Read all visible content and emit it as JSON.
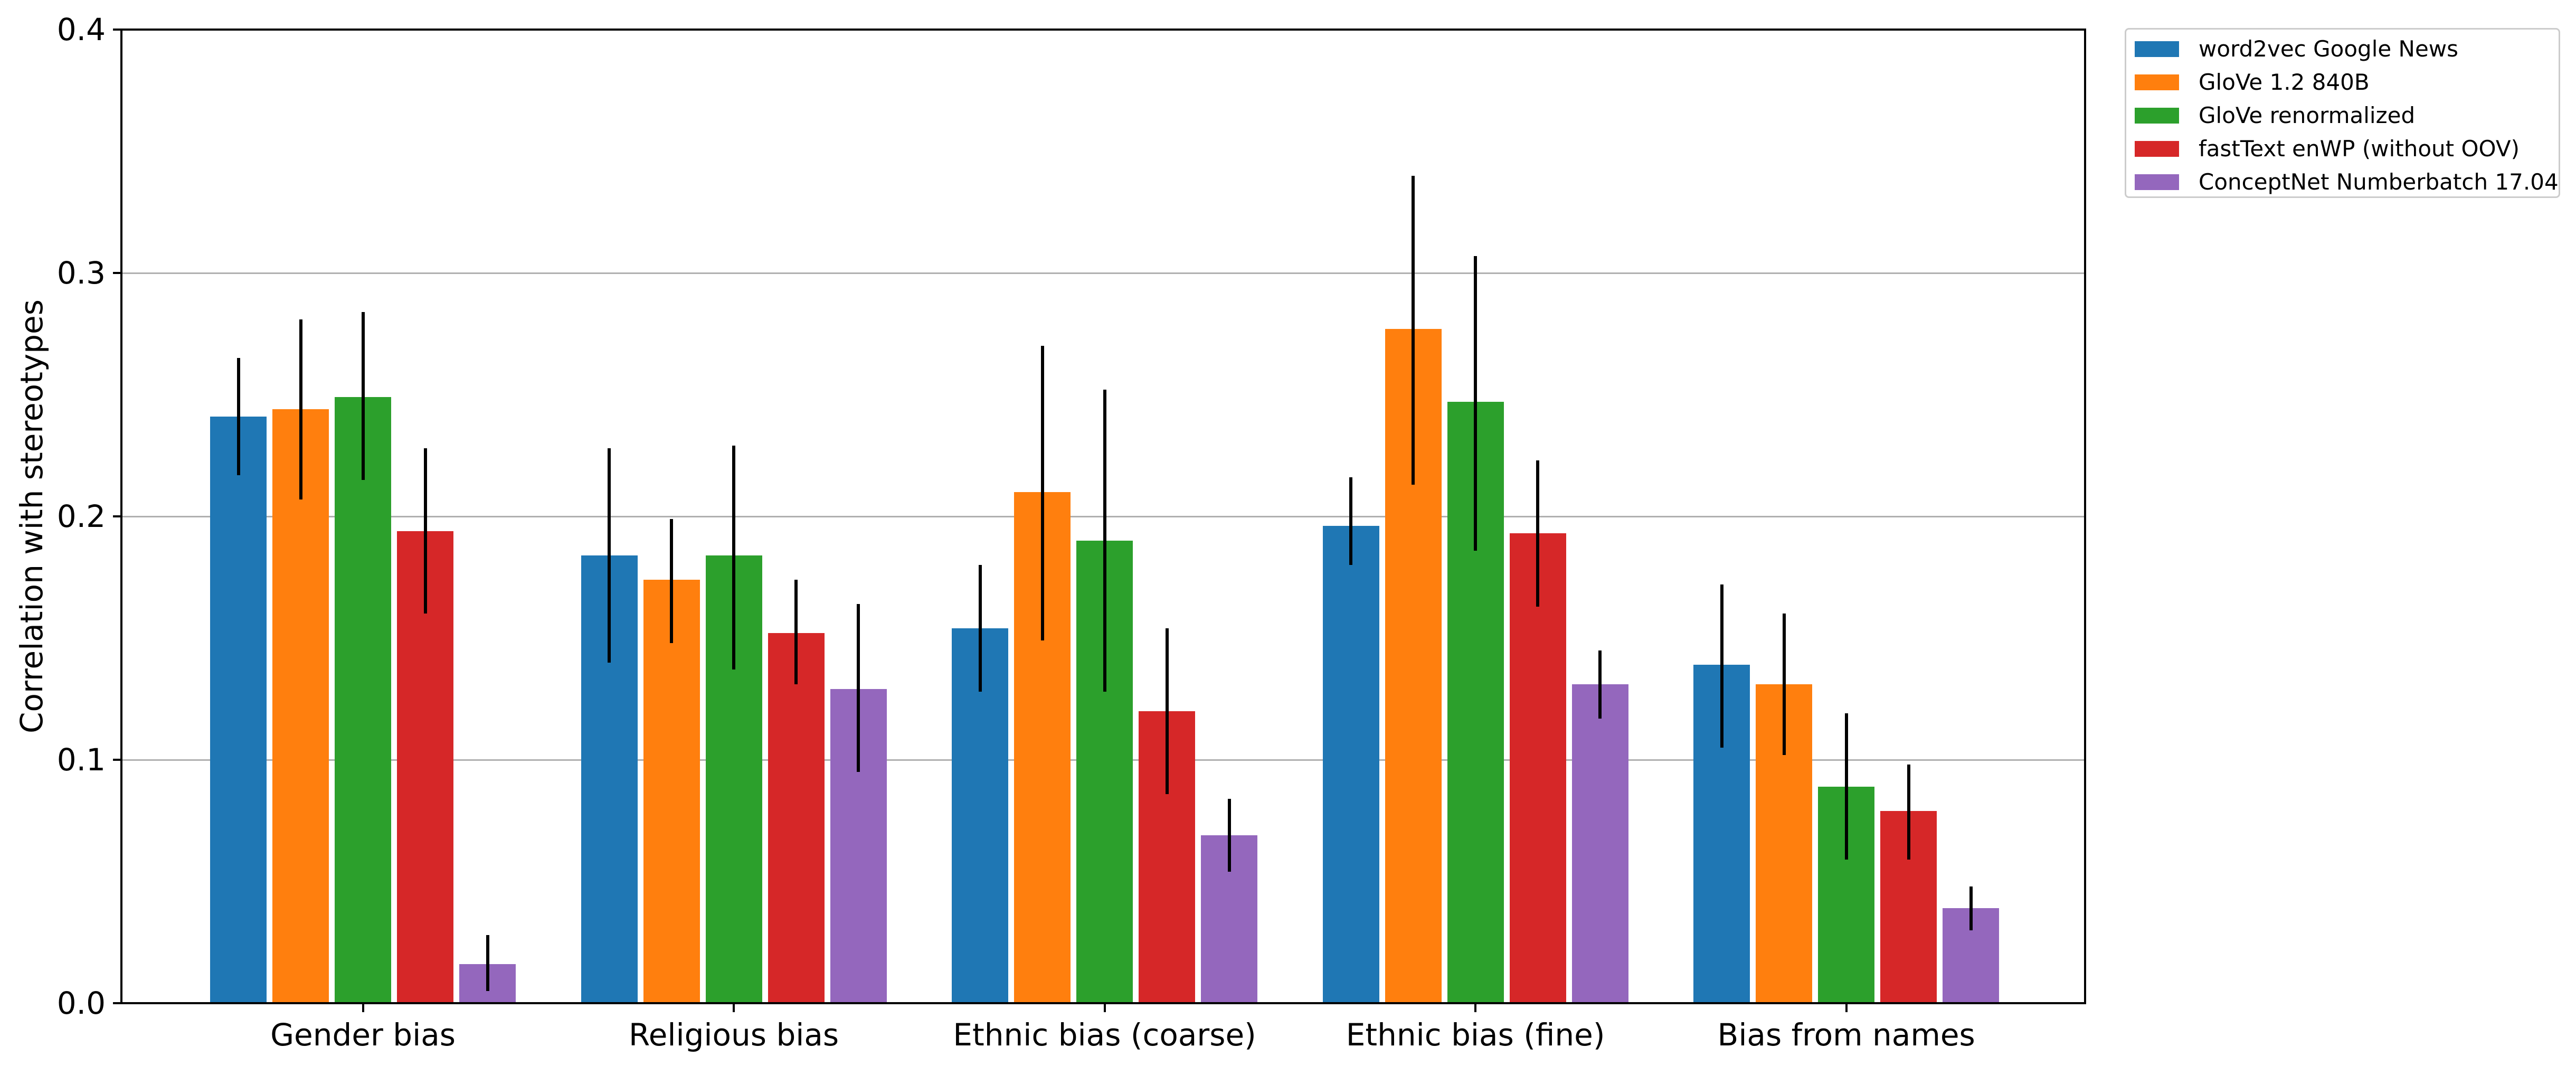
{
  "chart_data": {
    "type": "bar",
    "title": "",
    "xlabel": "",
    "ylabel": "Correlation with stereotypes",
    "ylim": [
      0.0,
      0.4
    ],
    "yticks": [
      0.0,
      0.1,
      0.2,
      0.3,
      0.4
    ],
    "ytick_labels": [
      "0.0",
      "0.1",
      "0.2",
      "0.3",
      "0.4"
    ],
    "grid": true,
    "grid_axis": "y",
    "legend_position": "outside-upper-right",
    "error_bars": true,
    "categories": [
      "Gender bias",
      "Religious bias",
      "Ethnic bias (coarse)",
      "Ethnic bias (fine)",
      "Bias from names"
    ],
    "series": [
      {
        "name": "word2vec Google News",
        "color": "#1f77b4",
        "values": [
          0.241,
          0.184,
          0.154,
          0.196,
          0.139
        ],
        "err_low": [
          0.217,
          0.14,
          0.128,
          0.18,
          0.105
        ],
        "err_high": [
          0.265,
          0.228,
          0.18,
          0.216,
          0.172
        ]
      },
      {
        "name": "GloVe 1.2 840B",
        "color": "#ff7f0e",
        "values": [
          0.244,
          0.174,
          0.21,
          0.277,
          0.131
        ],
        "err_low": [
          0.207,
          0.148,
          0.149,
          0.213,
          0.102
        ],
        "err_high": [
          0.281,
          0.199,
          0.27,
          0.34,
          0.16
        ]
      },
      {
        "name": "GloVe renormalized",
        "color": "#2ca02c",
        "values": [
          0.249,
          0.184,
          0.19,
          0.247,
          0.089
        ],
        "err_low": [
          0.215,
          0.137,
          0.128,
          0.186,
          0.059
        ],
        "err_high": [
          0.284,
          0.229,
          0.252,
          0.307,
          0.119
        ]
      },
      {
        "name": "fastText enWP (without OOV)",
        "color": "#d62728",
        "values": [
          0.194,
          0.152,
          0.12,
          0.193,
          0.079
        ],
        "err_low": [
          0.16,
          0.131,
          0.086,
          0.163,
          0.059
        ],
        "err_high": [
          0.228,
          0.174,
          0.154,
          0.223,
          0.098
        ]
      },
      {
        "name": "ConceptNet Numberbatch 17.04",
        "color": "#9467bd",
        "values": [
          0.016,
          0.129,
          0.069,
          0.131,
          0.039
        ],
        "err_low": [
          0.005,
          0.095,
          0.054,
          0.117,
          0.03
        ],
        "err_high": [
          0.028,
          0.164,
          0.084,
          0.145,
          0.048
        ]
      }
    ]
  }
}
